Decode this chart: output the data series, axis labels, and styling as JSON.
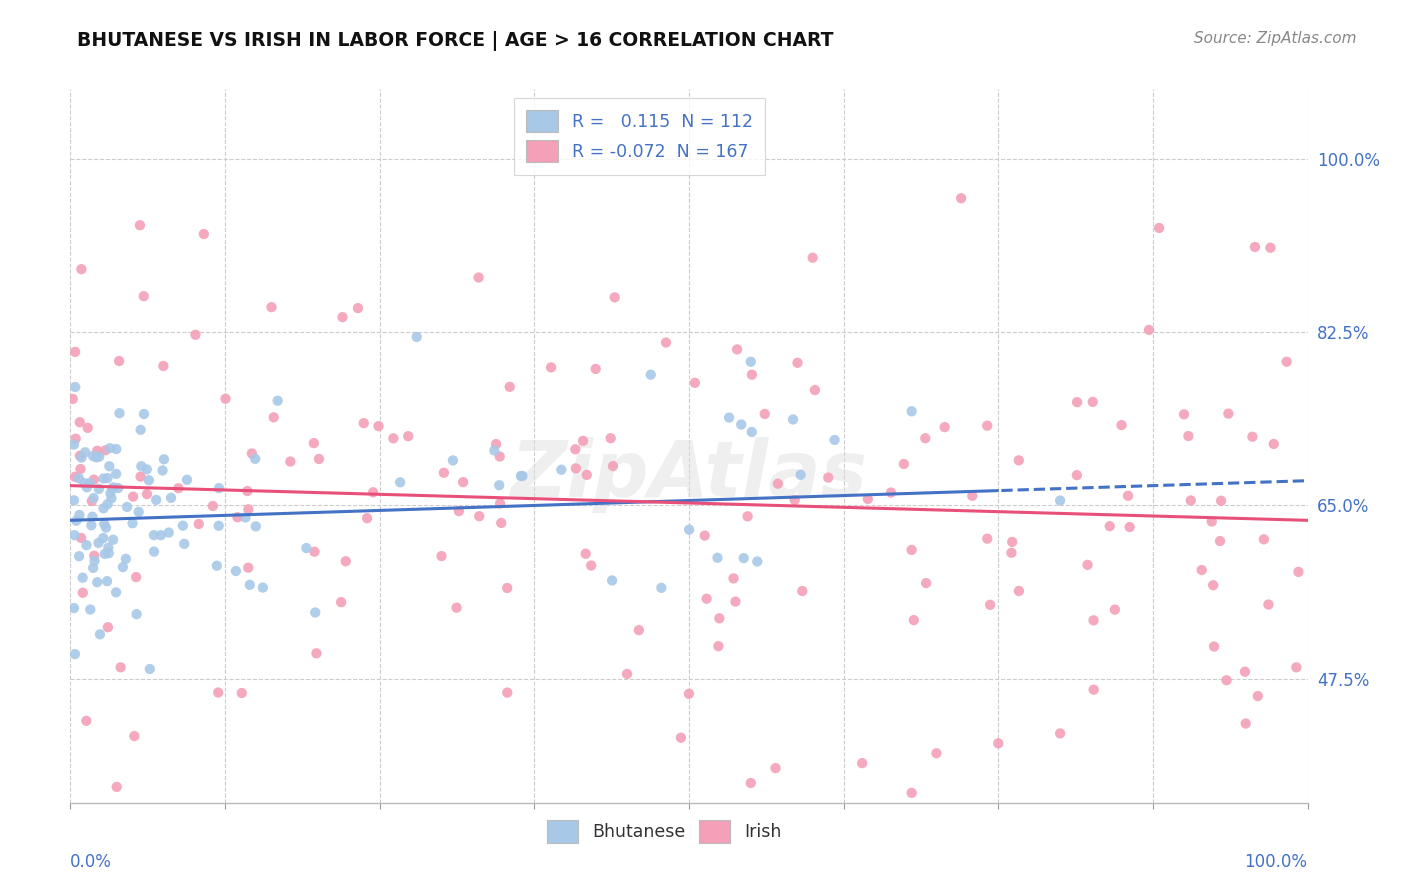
{
  "title": "BHUTANESE VS IRISH IN LABOR FORCE | AGE > 16 CORRELATION CHART",
  "source": "Source: ZipAtlas.com",
  "ylabel_ticks": [
    47.5,
    65.0,
    82.5,
    100.0
  ],
  "ylabel_tick_labels": [
    "47.5%",
    "65.0%",
    "82.5%",
    "100.0%"
  ],
  "watermark": "ZipAtlas",
  "bhutanese_R": 0.115,
  "bhutanese_N": 112,
  "irish_R": -0.072,
  "irish_N": 167,
  "bhutanese_color": "#a8c8e8",
  "irish_color": "#f4a0b8",
  "bhutanese_line_color": "#4472c4",
  "irish_line_color": "#e8507a",
  "legend_label1": "R =   0.115  N = 112",
  "legend_label2": "R = -0.072  N = 167",
  "xmin": 0.0,
  "xmax": 100.0,
  "ymin": 35.0,
  "ymax": 107.0,
  "background_color": "#ffffff",
  "grid_color": "#cccccc",
  "axis_color": "#4472c4",
  "tick_label_color": "#4472c4"
}
